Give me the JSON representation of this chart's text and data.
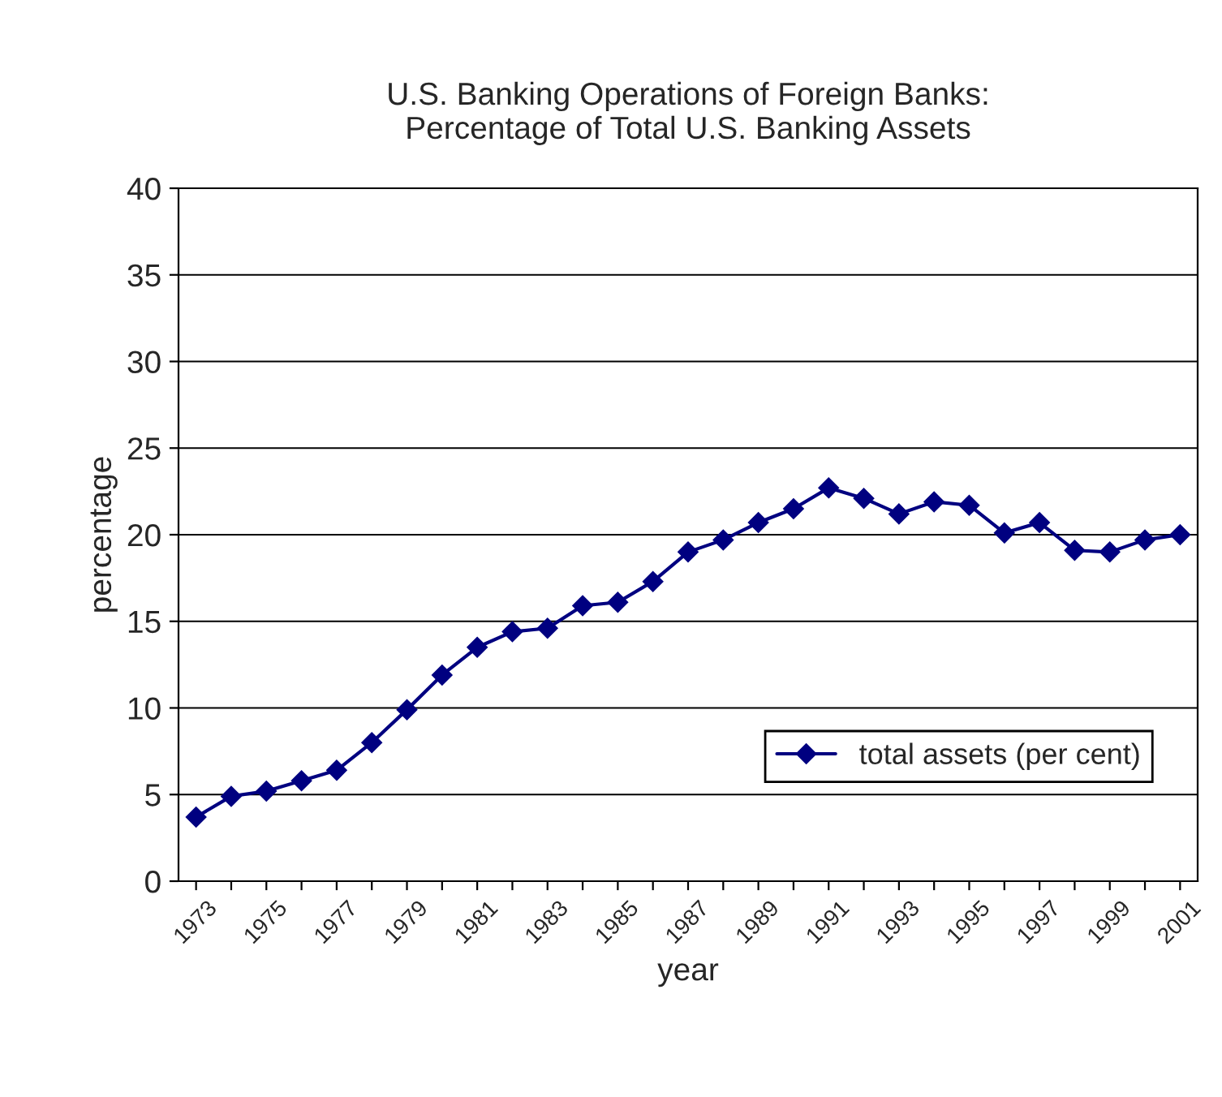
{
  "chart_data": {
    "type": "line",
    "title": "U.S. Banking Operations of Foreign Banks:\nPercentage of Total U.S. Banking Assets",
    "xlabel": "year",
    "ylabel": "percentage",
    "categories": [
      "1973",
      null,
      "1975",
      null,
      "1977",
      null,
      "1979",
      null,
      "1981",
      null,
      "1983",
      null,
      "1985",
      null,
      "1987",
      null,
      "1989",
      null,
      "1991",
      null,
      "1993",
      null,
      "1995",
      null,
      "1997",
      null,
      "1999",
      null,
      "2001"
    ],
    "series": [
      {
        "name": "total assets (per cent)",
        "color": "#000080",
        "values": [
          3.7,
          4.9,
          5.2,
          5.8,
          6.4,
          8.0,
          9.9,
          11.9,
          13.5,
          14.4,
          14.6,
          15.9,
          16.1,
          17.3,
          19.0,
          19.7,
          20.7,
          21.5,
          22.7,
          22.1,
          21.2,
          21.9,
          21.7,
          20.1,
          20.7,
          19.1,
          19.0,
          19.7,
          20.0
        ]
      }
    ],
    "ylim": [
      0,
      40
    ],
    "yticks": [
      0,
      5,
      10,
      15,
      20,
      25,
      30,
      35,
      40
    ],
    "grid": "y",
    "legend": "right",
    "marker": "diamond",
    "line_style": "solid"
  }
}
